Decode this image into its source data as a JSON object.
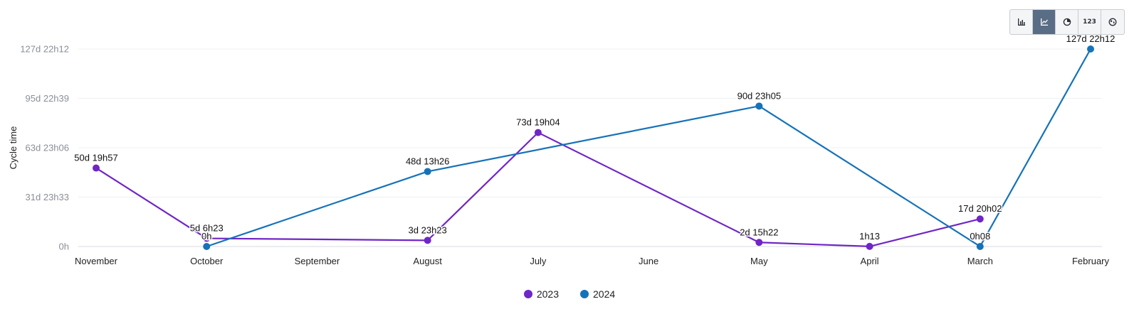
{
  "toolbar": {
    "buttons": [
      {
        "icon": "bar-chart-icon",
        "active": false
      },
      {
        "icon": "line-chart-icon",
        "active": true
      },
      {
        "icon": "pie-chart-icon",
        "active": false
      },
      {
        "icon": "number-icon",
        "label": "123",
        "active": false
      },
      {
        "icon": "globe-icon",
        "active": false
      }
    ]
  },
  "chart_data": {
    "type": "line",
    "title": "",
    "xlabel": "",
    "ylabel": "Cycle time",
    "categories": [
      "November",
      "October",
      "September",
      "August",
      "July",
      "June",
      "May",
      "April",
      "March",
      "February"
    ],
    "y_unit": "days",
    "ylim": [
      0,
      127.925
    ],
    "y_ticks": [
      {
        "value": 0,
        "label": "0h"
      },
      {
        "value": 31.9813,
        "label": "31d 23h33"
      },
      {
        "value": 63.9625,
        "label": "63d 23h06"
      },
      {
        "value": 95.9438,
        "label": "95d 22h39"
      },
      {
        "value": 127.925,
        "label": "127d 22h12"
      }
    ],
    "grid": true,
    "legend_position": "bottom",
    "series": [
      {
        "name": "2023",
        "color": "#6f26c6",
        "points": [
          {
            "x": "November",
            "y": 50.8313,
            "label": "50d 19h57"
          },
          {
            "x": "October",
            "y": 5.266,
            "label": "5d 6h23"
          },
          {
            "x": "August",
            "y": 3.9743,
            "label": "3d 23h23"
          },
          {
            "x": "July",
            "y": 73.7944,
            "label": "73d 19h04"
          },
          {
            "x": "May",
            "y": 2.6403,
            "label": "2d 15h22"
          },
          {
            "x": "April",
            "y": 0.0507,
            "label": "1h13"
          },
          {
            "x": "March",
            "y": 17.8347,
            "label": "17d 20h02"
          }
        ]
      },
      {
        "name": "2024",
        "color": "#1672b8",
        "points": [
          {
            "x": "October",
            "y": 0,
            "label": "0h"
          },
          {
            "x": "August",
            "y": 48.5597,
            "label": "48d 13h26"
          },
          {
            "x": "May",
            "y": 90.9618,
            "label": "90d 23h05"
          },
          {
            "x": "March",
            "y": 0.0056,
            "label": "0h08"
          },
          {
            "x": "February",
            "y": 127.925,
            "label": "127d 22h12"
          }
        ]
      }
    ]
  }
}
